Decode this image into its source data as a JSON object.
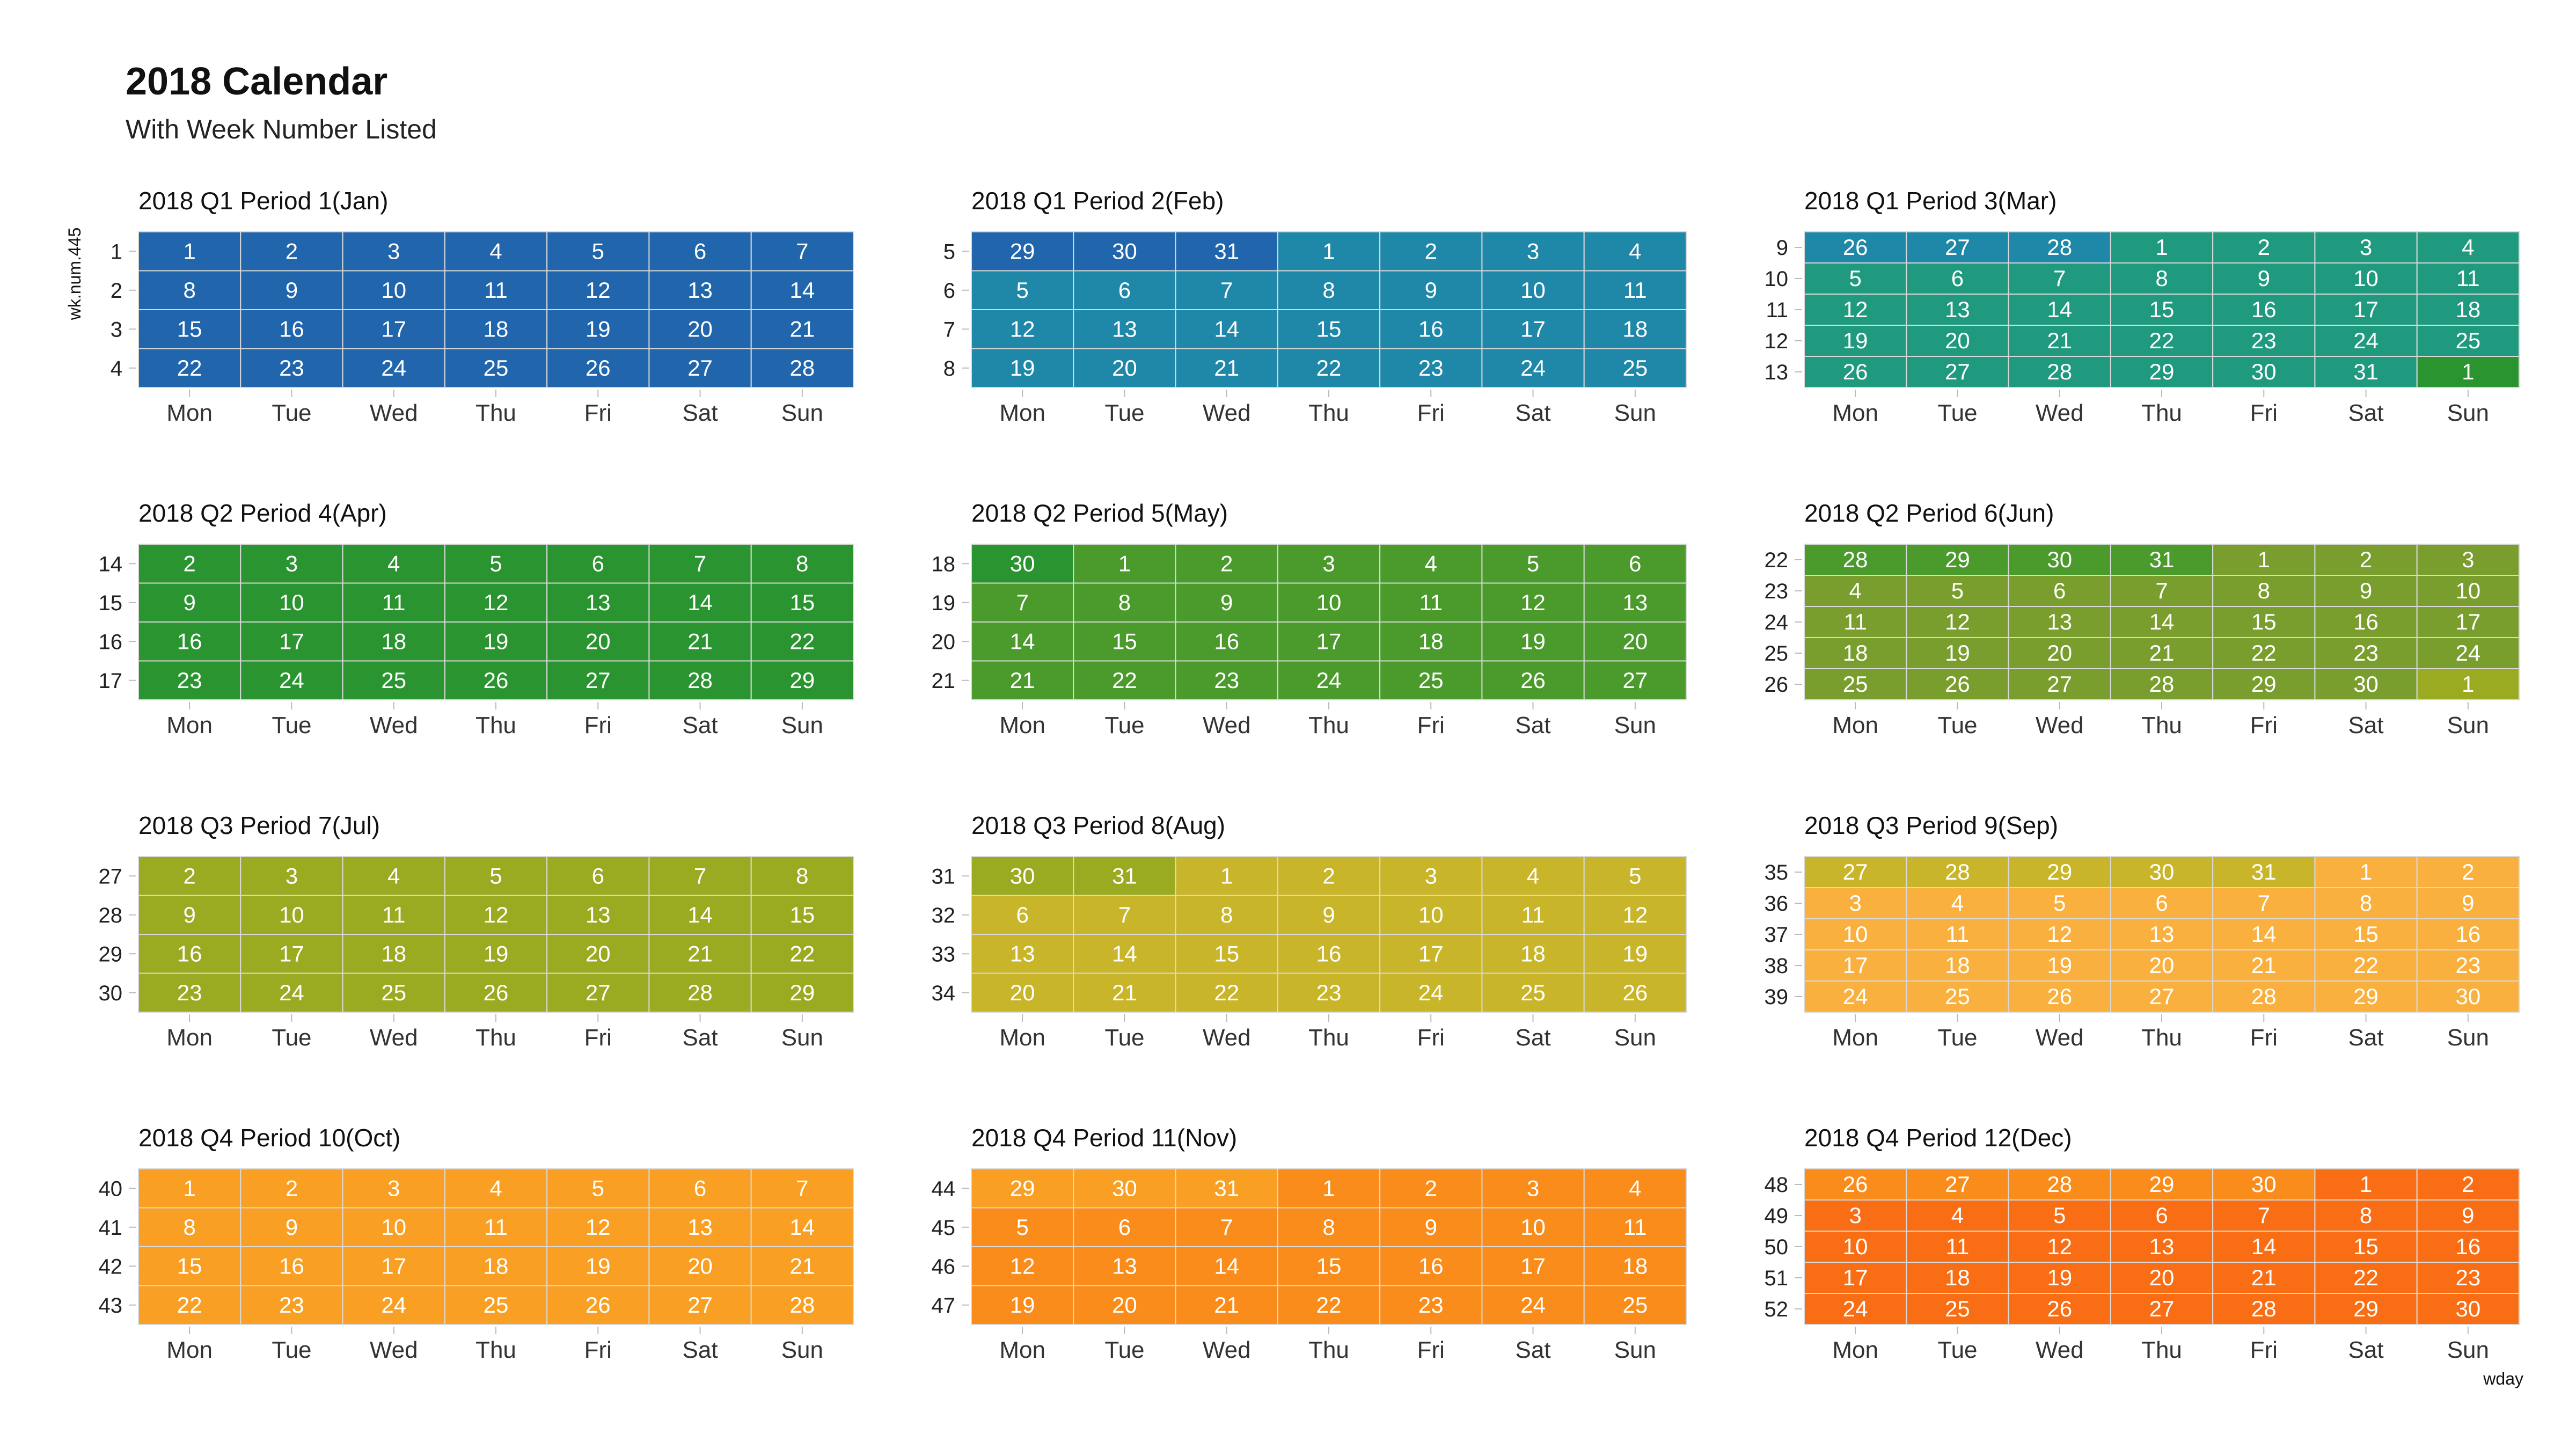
{
  "title": "2018 Calendar",
  "subtitle": "With Week Number Listed",
  "chart_data": {
    "type": "heatmap",
    "year": 2018,
    "xlabel": "wday",
    "ylabel": "wk.num.445",
    "weekdays": [
      "Mon",
      "Tue",
      "Wed",
      "Thu",
      "Fri",
      "Sat",
      "Sun"
    ],
    "periods": [
      {
        "title": "2018 Q1 Period 1(Jan)",
        "weeks": [
          1,
          2,
          3,
          4
        ],
        "days": [
          [
            1,
            2,
            3,
            4,
            5,
            6,
            7
          ],
          [
            8,
            9,
            10,
            11,
            12,
            13,
            14
          ],
          [
            15,
            16,
            17,
            18,
            19,
            20,
            21
          ],
          [
            22,
            23,
            24,
            25,
            26,
            27,
            28
          ]
        ],
        "color_groups": [
          [
            0,
            0,
            0,
            0,
            0,
            0,
            0
          ],
          [
            0,
            0,
            0,
            0,
            0,
            0,
            0
          ],
          [
            0,
            0,
            0,
            0,
            0,
            0,
            0
          ],
          [
            0,
            0,
            0,
            0,
            0,
            0,
            0
          ]
        ]
      },
      {
        "title": "2018 Q1 Period 2(Feb)",
        "weeks": [
          5,
          6,
          7,
          8
        ],
        "days": [
          [
            29,
            30,
            31,
            1,
            2,
            3,
            4
          ],
          [
            5,
            6,
            7,
            8,
            9,
            10,
            11
          ],
          [
            12,
            13,
            14,
            15,
            16,
            17,
            18
          ],
          [
            19,
            20,
            21,
            22,
            23,
            24,
            25
          ]
        ],
        "color_groups": [
          [
            0,
            0,
            0,
            1,
            1,
            1,
            1
          ],
          [
            1,
            1,
            1,
            1,
            1,
            1,
            1
          ],
          [
            1,
            1,
            1,
            1,
            1,
            1,
            1
          ],
          [
            1,
            1,
            1,
            1,
            1,
            1,
            1
          ]
        ]
      },
      {
        "title": "2018 Q1 Period 3(Mar)",
        "weeks": [
          9,
          10,
          11,
          12,
          13
        ],
        "days": [
          [
            26,
            27,
            28,
            1,
            2,
            3,
            4
          ],
          [
            5,
            6,
            7,
            8,
            9,
            10,
            11
          ],
          [
            12,
            13,
            14,
            15,
            16,
            17,
            18
          ],
          [
            19,
            20,
            21,
            22,
            23,
            24,
            25
          ],
          [
            26,
            27,
            28,
            29,
            30,
            31,
            1
          ]
        ],
        "color_groups": [
          [
            1,
            1,
            1,
            2,
            2,
            2,
            2
          ],
          [
            2,
            2,
            2,
            2,
            2,
            2,
            2
          ],
          [
            2,
            2,
            2,
            2,
            2,
            2,
            2
          ],
          [
            2,
            2,
            2,
            2,
            2,
            2,
            2
          ],
          [
            2,
            2,
            2,
            2,
            2,
            2,
            3
          ]
        ]
      },
      {
        "title": "2018 Q2 Period 4(Apr)",
        "weeks": [
          14,
          15,
          16,
          17
        ],
        "days": [
          [
            2,
            3,
            4,
            5,
            6,
            7,
            8
          ],
          [
            9,
            10,
            11,
            12,
            13,
            14,
            15
          ],
          [
            16,
            17,
            18,
            19,
            20,
            21,
            22
          ],
          [
            23,
            24,
            25,
            26,
            27,
            28,
            29
          ]
        ],
        "color_groups": [
          [
            3,
            3,
            3,
            3,
            3,
            3,
            3
          ],
          [
            3,
            3,
            3,
            3,
            3,
            3,
            3
          ],
          [
            3,
            3,
            3,
            3,
            3,
            3,
            3
          ],
          [
            3,
            3,
            3,
            3,
            3,
            3,
            3
          ]
        ]
      },
      {
        "title": "2018 Q2 Period 5(May)",
        "weeks": [
          18,
          19,
          20,
          21
        ],
        "days": [
          [
            30,
            1,
            2,
            3,
            4,
            5,
            6
          ],
          [
            7,
            8,
            9,
            10,
            11,
            12,
            13
          ],
          [
            14,
            15,
            16,
            17,
            18,
            19,
            20
          ],
          [
            21,
            22,
            23,
            24,
            25,
            26,
            27
          ]
        ],
        "color_groups": [
          [
            3,
            4,
            4,
            4,
            4,
            4,
            4
          ],
          [
            4,
            4,
            4,
            4,
            4,
            4,
            4
          ],
          [
            4,
            4,
            4,
            4,
            4,
            4,
            4
          ],
          [
            4,
            4,
            4,
            4,
            4,
            4,
            4
          ]
        ]
      },
      {
        "title": "2018 Q2 Period 6(Jun)",
        "weeks": [
          22,
          23,
          24,
          25,
          26
        ],
        "days": [
          [
            28,
            29,
            30,
            31,
            1,
            2,
            3
          ],
          [
            4,
            5,
            6,
            7,
            8,
            9,
            10
          ],
          [
            11,
            12,
            13,
            14,
            15,
            16,
            17
          ],
          [
            18,
            19,
            20,
            21,
            22,
            23,
            24
          ],
          [
            25,
            26,
            27,
            28,
            29,
            30,
            1
          ]
        ],
        "color_groups": [
          [
            4,
            4,
            4,
            4,
            5,
            5,
            5
          ],
          [
            5,
            5,
            5,
            5,
            5,
            5,
            5
          ],
          [
            5,
            5,
            5,
            5,
            5,
            5,
            5
          ],
          [
            5,
            5,
            5,
            5,
            5,
            5,
            5
          ],
          [
            5,
            5,
            5,
            5,
            5,
            5,
            6
          ]
        ]
      },
      {
        "title": "2018 Q3 Period 7(Jul)",
        "weeks": [
          27,
          28,
          29,
          30
        ],
        "days": [
          [
            2,
            3,
            4,
            5,
            6,
            7,
            8
          ],
          [
            9,
            10,
            11,
            12,
            13,
            14,
            15
          ],
          [
            16,
            17,
            18,
            19,
            20,
            21,
            22
          ],
          [
            23,
            24,
            25,
            26,
            27,
            28,
            29
          ]
        ],
        "color_groups": [
          [
            6,
            6,
            6,
            6,
            6,
            6,
            6
          ],
          [
            6,
            6,
            6,
            6,
            6,
            6,
            6
          ],
          [
            6,
            6,
            6,
            6,
            6,
            6,
            6
          ],
          [
            6,
            6,
            6,
            6,
            6,
            6,
            6
          ]
        ]
      },
      {
        "title": "2018 Q3 Period 8(Aug)",
        "weeks": [
          31,
          32,
          33,
          34
        ],
        "days": [
          [
            30,
            31,
            1,
            2,
            3,
            4,
            5
          ],
          [
            6,
            7,
            8,
            9,
            10,
            11,
            12
          ],
          [
            13,
            14,
            15,
            16,
            17,
            18,
            19
          ],
          [
            20,
            21,
            22,
            23,
            24,
            25,
            26
          ]
        ],
        "color_groups": [
          [
            6,
            6,
            7,
            7,
            7,
            7,
            7
          ],
          [
            7,
            7,
            7,
            7,
            7,
            7,
            7
          ],
          [
            7,
            7,
            7,
            7,
            7,
            7,
            7
          ],
          [
            7,
            7,
            7,
            7,
            7,
            7,
            7
          ]
        ]
      },
      {
        "title": "2018 Q3 Period 9(Sep)",
        "weeks": [
          35,
          36,
          37,
          38,
          39
        ],
        "days": [
          [
            27,
            28,
            29,
            30,
            31,
            1,
            2
          ],
          [
            3,
            4,
            5,
            6,
            7,
            8,
            9
          ],
          [
            10,
            11,
            12,
            13,
            14,
            15,
            16
          ],
          [
            17,
            18,
            19,
            20,
            21,
            22,
            23
          ],
          [
            24,
            25,
            26,
            27,
            28,
            29,
            30
          ]
        ],
        "color_groups": [
          [
            7,
            7,
            7,
            7,
            7,
            8,
            8
          ],
          [
            8,
            8,
            8,
            8,
            8,
            8,
            8
          ],
          [
            8,
            8,
            8,
            8,
            8,
            8,
            8
          ],
          [
            8,
            8,
            8,
            8,
            8,
            8,
            8
          ],
          [
            8,
            8,
            8,
            8,
            8,
            8,
            8
          ]
        ]
      },
      {
        "title": "2018 Q4 Period 10(Oct)",
        "weeks": [
          40,
          41,
          42,
          43
        ],
        "days": [
          [
            1,
            2,
            3,
            4,
            5,
            6,
            7
          ],
          [
            8,
            9,
            10,
            11,
            12,
            13,
            14
          ],
          [
            15,
            16,
            17,
            18,
            19,
            20,
            21
          ],
          [
            22,
            23,
            24,
            25,
            26,
            27,
            28
          ]
        ],
        "color_groups": [
          [
            9,
            9,
            9,
            9,
            9,
            9,
            9
          ],
          [
            9,
            9,
            9,
            9,
            9,
            9,
            9
          ],
          [
            9,
            9,
            9,
            9,
            9,
            9,
            9
          ],
          [
            9,
            9,
            9,
            9,
            9,
            9,
            9
          ]
        ]
      },
      {
        "title": "2018 Q4 Period 11(Nov)",
        "weeks": [
          44,
          45,
          46,
          47
        ],
        "days": [
          [
            29,
            30,
            31,
            1,
            2,
            3,
            4
          ],
          [
            5,
            6,
            7,
            8,
            9,
            10,
            11
          ],
          [
            12,
            13,
            14,
            15,
            16,
            17,
            18
          ],
          [
            19,
            20,
            21,
            22,
            23,
            24,
            25
          ]
        ],
        "color_groups": [
          [
            9,
            9,
            9,
            10,
            10,
            10,
            10
          ],
          [
            10,
            10,
            10,
            10,
            10,
            10,
            10
          ],
          [
            10,
            10,
            10,
            10,
            10,
            10,
            10
          ],
          [
            10,
            10,
            10,
            10,
            10,
            10,
            10
          ]
        ]
      },
      {
        "title": "2018 Q4 Period 12(Dec)",
        "weeks": [
          48,
          49,
          50,
          51,
          52
        ],
        "days": [
          [
            26,
            27,
            28,
            29,
            30,
            1,
            2
          ],
          [
            3,
            4,
            5,
            6,
            7,
            8,
            9
          ],
          [
            10,
            11,
            12,
            13,
            14,
            15,
            16
          ],
          [
            17,
            18,
            19,
            20,
            21,
            22,
            23
          ],
          [
            24,
            25,
            26,
            27,
            28,
            29,
            30
          ]
        ],
        "color_groups": [
          [
            10,
            10,
            10,
            10,
            10,
            11,
            11
          ],
          [
            11,
            11,
            11,
            11,
            11,
            11,
            11
          ],
          [
            11,
            11,
            11,
            11,
            11,
            11,
            11
          ],
          [
            11,
            11,
            11,
            11,
            11,
            11,
            11
          ],
          [
            11,
            11,
            11,
            11,
            11,
            11,
            11
          ]
        ]
      }
    ],
    "month_colors": [
      "#2166ac",
      "#1f87a8",
      "#1f9a7e",
      "#2a9430",
      "#4a9a2c",
      "#7a9e2e",
      "#9aab22",
      "#c9b52a",
      "#f9b03e",
      "#f9a024",
      "#f98c1a",
      "#f96e14"
    ],
    "cell_border_color": "#d9d9d9",
    "grid": true
  }
}
